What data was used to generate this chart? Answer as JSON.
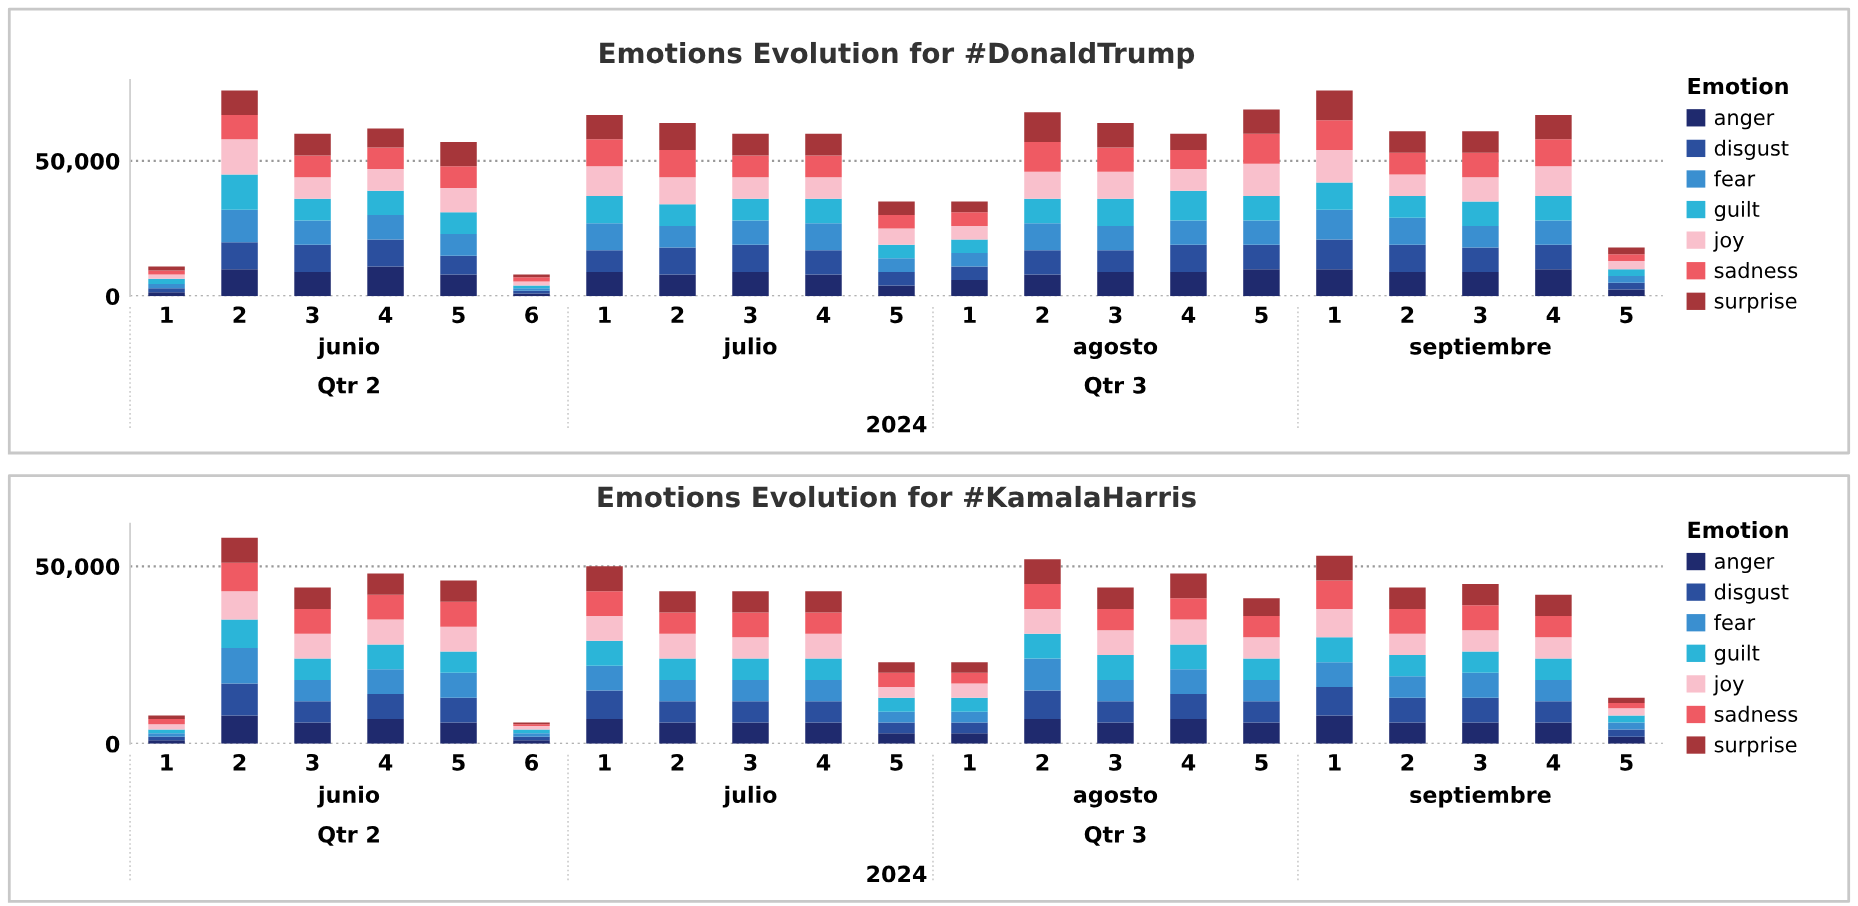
{
  "chart_data": [
    {
      "type": "bar",
      "stacked": true,
      "title": "Emotions Evolution for #DonaldTrump",
      "legend_title": "Emotion",
      "legend": "right",
      "grid": "y",
      "categories": [
        "1",
        "2",
        "3",
        "4",
        "5",
        "6",
        "1",
        "2",
        "3",
        "4",
        "5",
        "1",
        "2",
        "3",
        "4",
        "5",
        "1",
        "2",
        "3",
        "4",
        "5"
      ],
      "annotations": [
        "junio",
        "julio",
        "agosto",
        "septiembre",
        "Qtr 2",
        "Qtr 3",
        "2024"
      ],
      "ylim": [
        0,
        80000
      ],
      "yticks": [
        0,
        {
          "value": 50000,
          "label": "50,000"
        }
      ],
      "series": [
        {
          "name": "anger",
          "color": "#1f2a6e",
          "values": [
            1500,
            10000,
            9000,
            11000,
            8000,
            1000,
            9000,
            8000,
            9000,
            8000,
            4000,
            6000,
            8000,
            9000,
            9000,
            10000,
            10000,
            9000,
            9000,
            10000,
            2500
          ]
        },
        {
          "name": "disgust",
          "color": "#2b4f9e",
          "values": [
            1500,
            10000,
            10000,
            10000,
            7000,
            1000,
            8000,
            10000,
            10000,
            9000,
            5000,
            5000,
            9000,
            8000,
            10000,
            9000,
            11000,
            10000,
            9000,
            9000,
            2500
          ]
        },
        {
          "name": "fear",
          "color": "#3a8fd0",
          "values": [
            1500,
            12000,
            9000,
            9000,
            8000,
            1000,
            10000,
            8000,
            9000,
            10000,
            5000,
            5000,
            10000,
            9000,
            9000,
            9000,
            11000,
            10000,
            8000,
            9000,
            2500
          ]
        },
        {
          "name": "guilt",
          "color": "#2bb5d8",
          "values": [
            2000,
            13000,
            8000,
            9000,
            8000,
            1000,
            10000,
            8000,
            8000,
            9000,
            5000,
            5000,
            9000,
            10000,
            11000,
            9000,
            10000,
            8000,
            9000,
            9000,
            2500
          ]
        },
        {
          "name": "joy",
          "color": "#f9c0cc",
          "values": [
            1500,
            13000,
            8000,
            8000,
            9000,
            1500,
            11000,
            10000,
            8000,
            8000,
            6000,
            5000,
            10000,
            10000,
            8000,
            12000,
            12000,
            8000,
            9000,
            11000,
            3000
          ]
        },
        {
          "name": "sadness",
          "color": "#ef5a63",
          "values": [
            1500,
            9000,
            8000,
            8000,
            8000,
            1500,
            10000,
            10000,
            8000,
            8000,
            5000,
            5000,
            11000,
            9000,
            7000,
            11000,
            11000,
            8000,
            9000,
            10000,
            2500
          ]
        },
        {
          "name": "surprise",
          "color": "#a6363a",
          "values": [
            1500,
            9000,
            8000,
            7000,
            9000,
            1000,
            9000,
            10000,
            8000,
            8000,
            5000,
            4000,
            11000,
            9000,
            6000,
            9000,
            11000,
            8000,
            8000,
            9000,
            2500
          ]
        }
      ]
    },
    {
      "type": "bar",
      "stacked": true,
      "title": "Emotions Evolution for #KamalaHarris",
      "legend_title": "Emotion",
      "legend": "right",
      "grid": "y",
      "categories": [
        "1",
        "2",
        "3",
        "4",
        "5",
        "6",
        "1",
        "2",
        "3",
        "4",
        "5",
        "1",
        "2",
        "3",
        "4",
        "5",
        "1",
        "2",
        "3",
        "4",
        "5"
      ],
      "annotations": [
        "junio",
        "julio",
        "agosto",
        "septiembre",
        "Qtr 2",
        "Qtr 3",
        "2024"
      ],
      "ylim": [
        0,
        62000
      ],
      "yticks": [
        0,
        {
          "value": 50000,
          "label": "50,000"
        }
      ],
      "series": [
        {
          "name": "anger",
          "color": "#1f2a6e",
          "values": [
            1000,
            8000,
            6000,
            7000,
            6000,
            1000,
            7000,
            6000,
            6000,
            6000,
            3000,
            3000,
            7000,
            6000,
            7000,
            6000,
            8000,
            6000,
            6000,
            6000,
            2000
          ]
        },
        {
          "name": "disgust",
          "color": "#2b4f9e",
          "values": [
            1000,
            9000,
            6000,
            7000,
            7000,
            1000,
            8000,
            6000,
            6000,
            6000,
            3000,
            3000,
            8000,
            6000,
            7000,
            6000,
            8000,
            7000,
            7000,
            6000,
            2000
          ]
        },
        {
          "name": "fear",
          "color": "#3a8fd0",
          "values": [
            1000,
            10000,
            6000,
            7000,
            7000,
            1000,
            7000,
            6000,
            6000,
            6000,
            3000,
            3000,
            9000,
            6000,
            7000,
            6000,
            7000,
            6000,
            7000,
            6000,
            2000
          ]
        },
        {
          "name": "guilt",
          "color": "#2bb5d8",
          "values": [
            1000,
            8000,
            6000,
            7000,
            6000,
            1000,
            7000,
            6000,
            6000,
            6000,
            4000,
            4000,
            7000,
            7000,
            7000,
            6000,
            7000,
            6000,
            6000,
            6000,
            2000
          ]
        },
        {
          "name": "joy",
          "color": "#f9c0cc",
          "values": [
            1500,
            8000,
            7000,
            7000,
            7000,
            1000,
            7000,
            7000,
            6000,
            7000,
            3000,
            4000,
            7000,
            7000,
            7000,
            6000,
            8000,
            6000,
            6000,
            6000,
            2000
          ]
        },
        {
          "name": "sadness",
          "color": "#ef5a63",
          "values": [
            1500,
            8000,
            7000,
            7000,
            7000,
            500,
            7000,
            6000,
            7000,
            6000,
            4000,
            3000,
            7000,
            6000,
            6000,
            6000,
            8000,
            7000,
            7000,
            6000,
            1500
          ]
        },
        {
          "name": "surprise",
          "color": "#a6363a",
          "values": [
            1000,
            7000,
            6000,
            6000,
            6000,
            500,
            7000,
            6000,
            6000,
            6000,
            3000,
            3000,
            7000,
            6000,
            7000,
            5000,
            7000,
            6000,
            6000,
            6000,
            1500
          ]
        }
      ]
    }
  ]
}
